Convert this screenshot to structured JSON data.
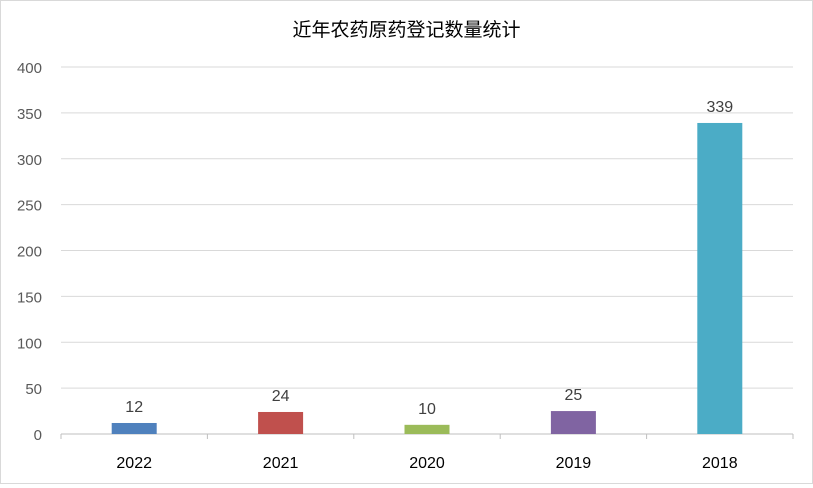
{
  "chart_data": {
    "type": "bar",
    "title": "近年农药原药登记数量统计",
    "categories": [
      "2022",
      "2021",
      "2020",
      "2019",
      "2018"
    ],
    "values": [
      12,
      24,
      10,
      25,
      339
    ],
    "colors": [
      "#4f81bd",
      "#c0504d",
      "#9bbb59",
      "#8064a2",
      "#4bacc6"
    ],
    "data_labels": [
      "12",
      "24",
      "10",
      "25",
      "339"
    ],
    "xlabel": "",
    "ylabel": "",
    "ylim": [
      0,
      400
    ],
    "yticks": [
      "0",
      "50",
      "100",
      "150",
      "200",
      "250",
      "300",
      "350",
      "400"
    ],
    "grid": true,
    "legend": "none"
  }
}
